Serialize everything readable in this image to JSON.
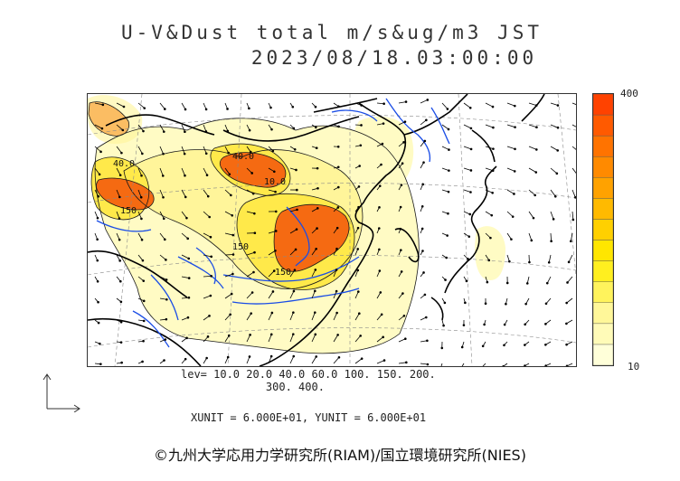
{
  "title": "U-V&Dust total m/s&ug/m3 JST",
  "datetime": "2023/08/18.03:00:00",
  "colorbar": {
    "max_label": "400",
    "min_label": "10",
    "colors": [
      "#ffffd9",
      "#fffbb8",
      "#fff799",
      "#fff35c",
      "#ffef1f",
      "#ffe600",
      "#ffd000",
      "#ffba00",
      "#ffa200",
      "#ff8a00",
      "#ff7300",
      "#ff5a00",
      "#ff4200"
    ]
  },
  "contour_labels": [
    "40.0",
    "40.0",
    "10.0",
    "150",
    "150",
    "150"
  ],
  "levels_line1": "lev= 10.0 20.0 40.0 60.0 100. 150. 200.",
  "levels_line2": "300. 400.",
  "units": "XUNIT = 6.000E+01, YUNIT = 6.000E+01",
  "copyright": "©九州大学応用力学研究所(RIAM)/国立環境研究所(NIES)",
  "colors": {
    "coast": "#000000",
    "river": "#1a4de6",
    "grid": "#888888",
    "arrows": "#000000"
  }
}
